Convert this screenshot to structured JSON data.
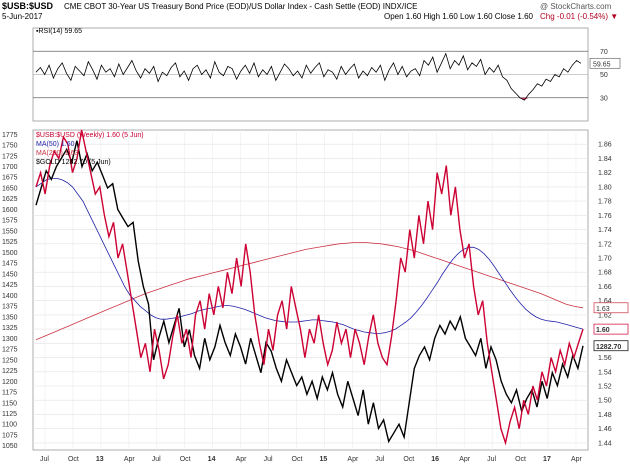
{
  "header": {
    "symbol": "$USB:$USD",
    "description": "CME CBOT 30-Year US Treasury Bond Price (EOD)/US Dollar Index - Cash Settle (EOD)  INDX/ICE",
    "watermark": "@ StockCharts.com",
    "date": "5-Jun-2017",
    "ohlc": "Open 1.60  High 1.60  Low 1.60  Close 1.60",
    "change": "Chg -0.01 (-0.54%) ▼"
  },
  "rsi_legend": "▪RSI(14) 59.65",
  "price_legend": {
    "main": "$USB:$USD (Weekly) 1.60 (5 Jun)",
    "ma50": "MA(50) 1.60",
    "ma200": "MA(200) 1.63",
    "gold": "$GOLD 1282.70 (5 Jun)"
  },
  "colors": {
    "price": "#cc0033",
    "ma50": "#2222aa",
    "ma200": "#cc3344",
    "gold": "#000000",
    "rsi_fill": "#cc3366"
  },
  "chart_data": [
    {
      "type": "line",
      "title": "RSI(14)",
      "y_ticks": [
        70,
        50,
        30
      ],
      "ylim": [
        10,
        90
      ],
      "last_value": 59.65,
      "last_label": "59.65",
      "values": [
        52,
        56,
        50,
        58,
        47,
        55,
        60,
        51,
        45,
        57,
        53,
        49,
        61,
        54,
        46,
        58,
        52,
        55,
        48,
        59,
        50,
        56,
        62,
        53,
        47,
        55,
        51,
        57,
        44,
        52,
        49,
        56,
        60,
        48,
        53,
        45,
        55,
        58,
        50,
        54,
        47,
        61,
        52,
        49,
        57,
        55,
        46,
        53,
        58,
        51,
        60,
        48,
        54,
        50,
        57,
        45,
        52,
        59,
        55,
        49,
        53,
        47,
        58,
        51,
        56,
        60,
        48,
        54,
        52,
        46,
        57,
        50,
        55,
        59,
        47,
        53,
        49,
        56,
        52,
        58,
        45,
        54,
        60,
        50,
        57,
        48,
        53,
        55,
        49,
        62,
        58,
        65,
        52,
        60,
        68,
        55,
        62,
        58,
        66,
        54,
        60,
        57,
        63,
        50,
        56,
        52,
        58,
        48,
        45,
        38,
        34,
        30,
        28,
        33,
        37,
        42,
        40,
        46,
        44,
        50,
        48,
        55,
        52,
        58,
        62,
        59.65
      ]
    },
    {
      "type": "line",
      "title": "$USB:$USD (Weekly)",
      "x_tick_labels": [
        "Jul",
        "Oct",
        "13",
        "Apr",
        "Jul",
        "Oct",
        "14",
        "Apr",
        "Jul",
        "Oct",
        "15",
        "Apr",
        "Jul",
        "Oct",
        "16",
        "Apr",
        "Jul",
        "Oct",
        "17",
        "Apr"
      ],
      "y_left_ticks": [
        "1775",
        "1750",
        "1725",
        "1700",
        "1675",
        "1650",
        "1625",
        "1600",
        "1575",
        "1550",
        "1525",
        "1500",
        "1475",
        "1450",
        "1425",
        "1400",
        "1375",
        "1350",
        "1325",
        "1300",
        "1275",
        "1250",
        "1225",
        "1200",
        "1175",
        "1150",
        "1125",
        "1100",
        "1075",
        "1050"
      ],
      "y_right_ticks": [
        "1.86",
        "1.84",
        "1.82",
        "1.80",
        "1.78",
        "1.76",
        "1.74",
        "1.72",
        "1.70",
        "1.68",
        "1.66",
        "1.64",
        "1.62",
        "1.60",
        "1.58",
        "1.56",
        "1.54",
        "1.52",
        "1.50",
        "1.48",
        "1.46",
        "1.44"
      ],
      "ylim_ratio": [
        1.43,
        1.88
      ],
      "ylim_gold": [
        1040,
        1785
      ],
      "series": [
        {
          "name": "$USB:$USD",
          "values": [
            1.8,
            1.82,
            1.79,
            1.83,
            1.85,
            1.84,
            1.87,
            1.86,
            1.82,
            1.84,
            1.88,
            1.85,
            1.82,
            1.79,
            1.8,
            1.76,
            1.73,
            1.75,
            1.7,
            1.72,
            1.68,
            1.64,
            1.6,
            1.56,
            1.58,
            1.54,
            1.6,
            1.57,
            1.53,
            1.55,
            1.59,
            1.62,
            1.58,
            1.6,
            1.56,
            1.62,
            1.64,
            1.6,
            1.65,
            1.62,
            1.66,
            1.63,
            1.68,
            1.65,
            1.7,
            1.66,
            1.72,
            1.68,
            1.62,
            1.58,
            1.55,
            1.6,
            1.57,
            1.62,
            1.64,
            1.6,
            1.66,
            1.63,
            1.6,
            1.56,
            1.6,
            1.58,
            1.62,
            1.58,
            1.55,
            1.57,
            1.61,
            1.58,
            1.6,
            1.56,
            1.6,
            1.58,
            1.55,
            1.59,
            1.62,
            1.58,
            1.56,
            1.55,
            1.59,
            1.64,
            1.7,
            1.68,
            1.74,
            1.7,
            1.76,
            1.72,
            1.78,
            1.74,
            1.82,
            1.79,
            1.83,
            1.76,
            1.8,
            1.74,
            1.7,
            1.72,
            1.66,
            1.62,
            1.64,
            1.58,
            1.54,
            1.5,
            1.46,
            1.44,
            1.47,
            1.49,
            1.46,
            1.5,
            1.48,
            1.52,
            1.5,
            1.54,
            1.52,
            1.56,
            1.54,
            1.57,
            1.55,
            1.58,
            1.56,
            1.58,
            1.6
          ]
        },
        {
          "name": "MA(50)",
          "values": [
            1.8,
            1.805,
            1.81,
            1.812,
            1.812,
            1.81,
            1.806,
            1.8,
            1.79,
            1.78,
            1.765,
            1.75,
            1.735,
            1.72,
            1.705,
            1.69,
            1.675,
            1.66,
            1.648,
            1.64,
            1.632,
            1.626,
            1.62,
            1.616,
            1.614,
            1.614,
            1.615,
            1.616,
            1.618,
            1.62,
            1.622,
            1.625,
            1.627,
            1.629,
            1.63,
            1.632,
            1.633,
            1.633,
            1.632,
            1.63,
            1.628,
            1.625,
            1.622,
            1.619,
            1.616,
            1.614,
            1.612,
            1.611,
            1.61,
            1.61,
            1.61,
            1.611,
            1.612,
            1.613,
            1.613,
            1.612,
            1.611,
            1.61,
            1.608,
            1.606,
            1.603,
            1.6,
            1.598,
            1.596,
            1.595,
            1.594,
            1.594,
            1.595,
            1.597,
            1.6,
            1.605,
            1.61,
            1.616,
            1.624,
            1.633,
            1.643,
            1.654,
            1.665,
            1.677,
            1.688,
            1.698,
            1.706,
            1.712,
            1.715,
            1.715,
            1.712,
            1.706,
            1.698,
            1.688,
            1.677,
            1.666,
            1.655,
            1.645,
            1.636,
            1.628,
            1.622,
            1.617,
            1.614,
            1.612,
            1.611,
            1.61,
            1.608,
            1.606,
            1.604,
            1.602,
            1.6
          ]
        },
        {
          "name": "MA(200)",
          "values": [
            1.585,
            1.59,
            1.595,
            1.6,
            1.605,
            1.61,
            1.615,
            1.62,
            1.625,
            1.63,
            1.635,
            1.64,
            1.645,
            1.65,
            1.654,
            1.658,
            1.662,
            1.666,
            1.67,
            1.673,
            1.676,
            1.679,
            1.682,
            1.685,
            1.688,
            1.691,
            1.694,
            1.697,
            1.7,
            1.703,
            1.706,
            1.709,
            1.712,
            1.714,
            1.716,
            1.718,
            1.72,
            1.721,
            1.722,
            1.722,
            1.721,
            1.72,
            1.718,
            1.716,
            1.713,
            1.71,
            1.706,
            1.702,
            1.698,
            1.694,
            1.69,
            1.686,
            1.682,
            1.678,
            1.674,
            1.67,
            1.666,
            1.662,
            1.658,
            1.654,
            1.65,
            1.645,
            1.64,
            1.635,
            1.632,
            1.63
          ]
        },
        {
          "name": "$GOLD",
          "values": [
            1610,
            1650,
            1690,
            1670,
            1700,
            1720,
            1740,
            1710,
            1760,
            1700,
            1730,
            1690,
            1710,
            1680,
            1650,
            1660,
            1600,
            1580,
            1560,
            1570,
            1480,
            1420,
            1380,
            1250,
            1300,
            1340,
            1290,
            1330,
            1370,
            1280,
            1320,
            1260,
            1230,
            1300,
            1250,
            1280,
            1330,
            1290,
            1260,
            1310,
            1280,
            1240,
            1300,
            1260,
            1220,
            1290,
            1270,
            1230,
            1200,
            1250,
            1220,
            1190,
            1210,
            1170,
            1200,
            1160,
            1210,
            1180,
            1220,
            1170,
            1140,
            1200,
            1160,
            1120,
            1180,
            1100,
            1150,
            1090,
            1110,
            1060,
            1080,
            1100,
            1070,
            1150,
            1230,
            1260,
            1280,
            1250,
            1300,
            1330,
            1310,
            1340,
            1320,
            1350,
            1300,
            1280,
            1260,
            1300,
            1230,
            1280,
            1250,
            1200,
            1170,
            1150,
            1180,
            1130,
            1160,
            1180,
            1140,
            1200,
            1160,
            1220,
            1190,
            1240,
            1210,
            1260,
            1230,
            1282.7
          ]
        }
      ],
      "last_labels": {
        "ma200": "1.63",
        "price": "1.60",
        "gold": "1282.70"
      }
    }
  ]
}
